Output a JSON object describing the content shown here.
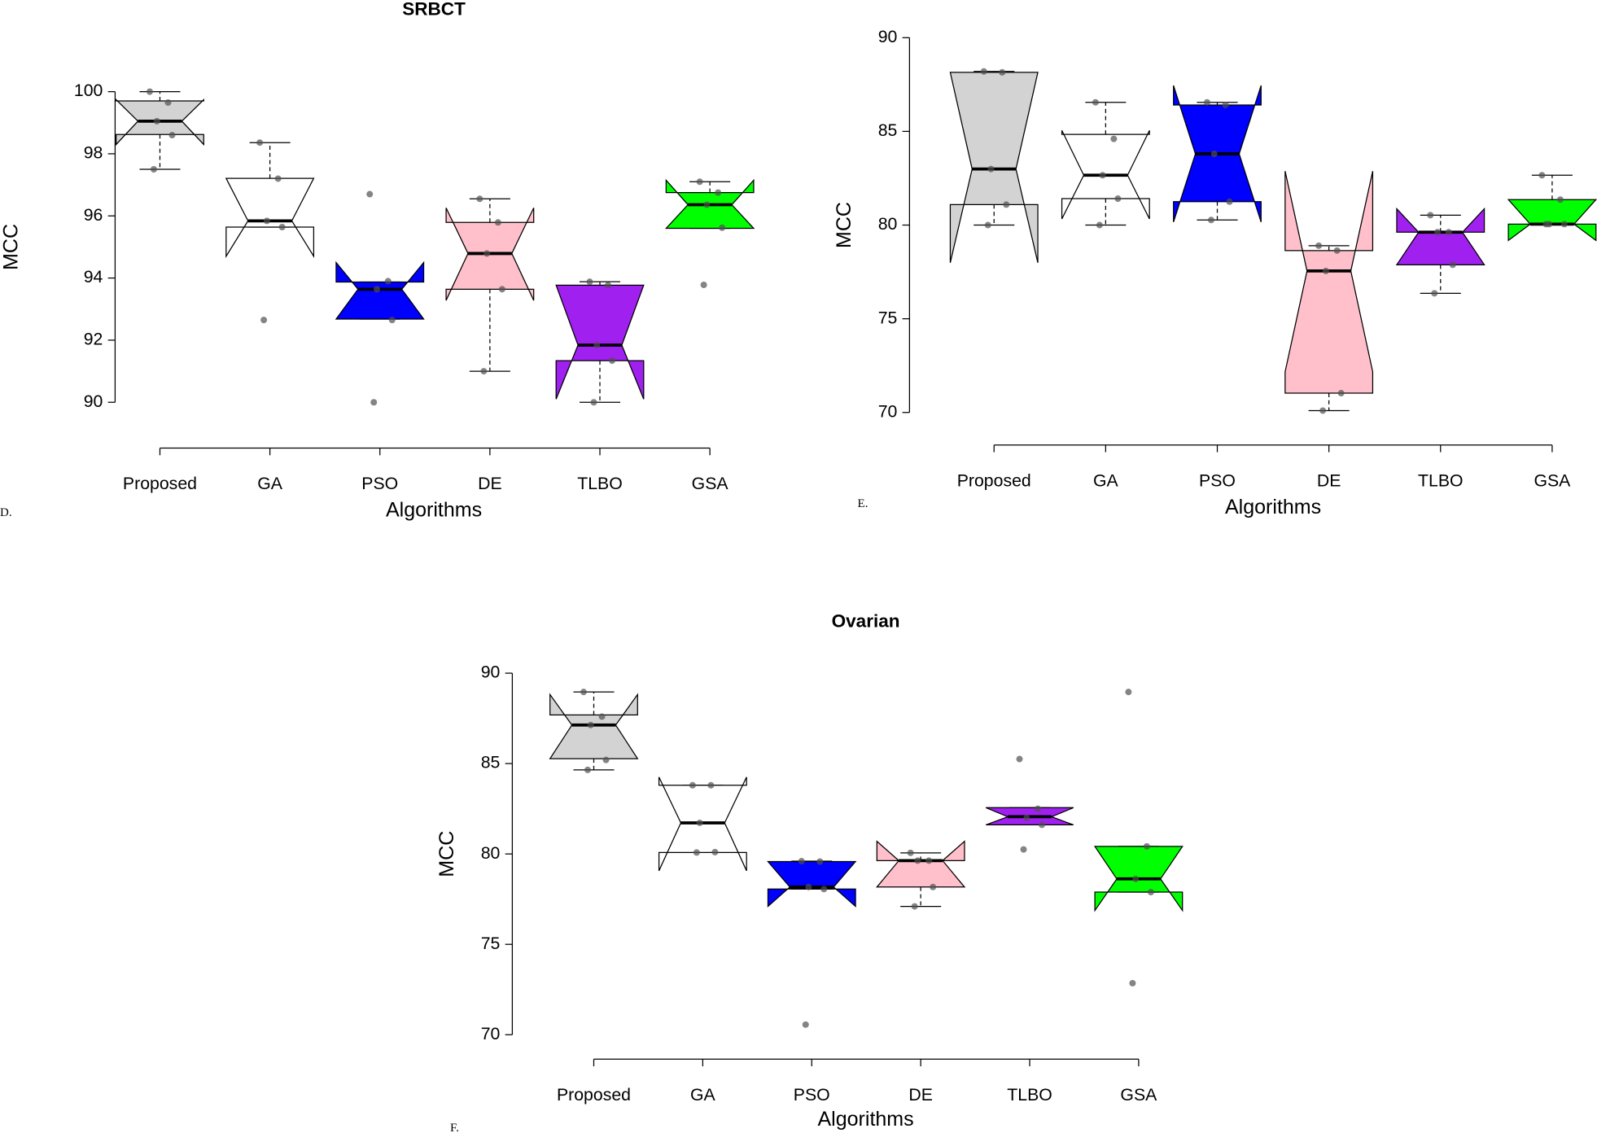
{
  "chart_data": [
    {
      "type": "box",
      "title": "SRBCT",
      "panel_label": "D.",
      "x_label": "Algorithms",
      "y_label": "MCC",
      "categories": [
        "Proposed",
        "GA",
        "PSO",
        "DE",
        "TLBO",
        "GSA"
      ],
      "ylim": [
        90,
        100
      ],
      "yticks": [
        90,
        92,
        94,
        96,
        98,
        100
      ],
      "boxes": [
        {
          "fill": "#d3d3d3",
          "whisker_low": 97.5,
          "q1": 98.62,
          "median": 99.05,
          "q3": 99.7,
          "whisker_high": 100,
          "notch_low": 98.3,
          "notch_high": 99.74,
          "points": [
            100,
            99.65,
            99.05,
            98.6,
            97.5
          ]
        },
        {
          "fill": "#ffffff",
          "whisker_low": 95.64,
          "q1": 95.64,
          "median": 95.84,
          "q3": 97.21,
          "whisker_high": 98.36,
          "notch_low": 94.7,
          "notch_high": 97.21,
          "points": [
            98.36,
            97.2,
            95.84,
            95.64,
            92.65
          ]
        },
        {
          "fill": "#0000ff",
          "whisker_low": 92.68,
          "q1": 92.68,
          "median": 93.64,
          "q3": 93.87,
          "whisker_high": 93.87,
          "notch_low": 92.68,
          "notch_high": 94.5,
          "points": [
            96.7,
            93.9,
            93.64,
            92.65,
            90
          ]
        },
        {
          "fill": "#ffc0cb",
          "whisker_low": 91,
          "q1": 93.64,
          "median": 94.79,
          "q3": 95.79,
          "whisker_high": 96.55,
          "notch_low": 93.28,
          "notch_high": 96.26,
          "points": [
            96.55,
            95.79,
            94.79,
            93.64,
            91
          ]
        },
        {
          "fill": "#a020f0",
          "whisker_low": 90,
          "q1": 91.34,
          "median": 91.84,
          "q3": 93.77,
          "whisker_high": 93.88,
          "notch_low": 90.1,
          "notch_high": 93.77,
          "points": [
            93.88,
            93.77,
            91.84,
            91.34,
            90
          ]
        },
        {
          "fill": "#00ff00",
          "whisker_low": 95.6,
          "q1": 95.6,
          "median": 96.36,
          "q3": 96.75,
          "whisker_high": 97.1,
          "notch_low": 95.6,
          "notch_high": 97.15,
          "points": [
            97.1,
            96.75,
            96.36,
            95.62,
            93.78
          ]
        }
      ]
    },
    {
      "type": "box",
      "panel_label": "E.",
      "x_label": "Algorithms",
      "y_label": "MCC",
      "categories": [
        "Proposed",
        "GA",
        "PSO",
        "DE",
        "TLBO",
        "GSA"
      ],
      "ylim": [
        70,
        90
      ],
      "yticks": [
        70,
        75,
        80,
        85,
        90
      ],
      "boxes": [
        {
          "fill": "#d3d3d3",
          "whisker_low": 80,
          "q1": 81.09,
          "median": 82.99,
          "q3": 88.15,
          "whisker_high": 88.2,
          "notch_low": 77.99,
          "notch_high": 88.15,
          "points": [
            88.2,
            88.15,
            82.99,
            81.09,
            80
          ]
        },
        {
          "fill": "#ffffff",
          "whisker_low": 80,
          "q1": 81.41,
          "median": 82.66,
          "q3": 84.84,
          "whisker_high": 86.55,
          "notch_low": 80.33,
          "notch_high": 85.05,
          "points": [
            86.55,
            84.6,
            82.66,
            81.41,
            80
          ]
        },
        {
          "fill": "#0000ff",
          "whisker_low": 80.27,
          "q1": 81.25,
          "median": 83.8,
          "q3": 86.41,
          "whisker_high": 86.55,
          "notch_low": 80.16,
          "notch_high": 87.45,
          "points": [
            86.55,
            86.41,
            83.8,
            81.25,
            80.27
          ]
        },
        {
          "fill": "#ffc0cb",
          "whisker_low": 70.1,
          "q1": 71.03,
          "median": 77.55,
          "q3": 78.64,
          "whisker_high": 78.9,
          "notch_low": 72.17,
          "notch_high": 82.88,
          "points": [
            78.9,
            78.64,
            77.55,
            71.03,
            70.1
          ]
        },
        {
          "fill": "#a020f0",
          "whisker_low": 76.36,
          "q1": 77.88,
          "median": 79.62,
          "q3": 79.62,
          "whisker_high": 80.53,
          "notch_low": 77.88,
          "notch_high": 80.87,
          "points": [
            80.53,
            79.62,
            79.62,
            77.88,
            76.36
          ]
        },
        {
          "fill": "#00ff00",
          "whisker_low": 80.05,
          "q1": 80.05,
          "median": 80.05,
          "q3": 81.36,
          "whisker_high": 82.66,
          "notch_low": 79.18,
          "notch_high": 81.36,
          "points": [
            82.66,
            81.36,
            80.05,
            80.05,
            80.05
          ]
        }
      ]
    },
    {
      "type": "box",
      "title": "Ovarian",
      "panel_label": "F.",
      "x_label": "Algorithms",
      "y_label": "MCC",
      "categories": [
        "Proposed",
        "GA",
        "PSO",
        "DE",
        "TLBO",
        "GSA"
      ],
      "ylim": [
        70,
        90
      ],
      "yticks": [
        70,
        75,
        80,
        85,
        90
      ],
      "boxes": [
        {
          "fill": "#d3d3d3",
          "whisker_low": 84.65,
          "q1": 85.27,
          "median": 87.13,
          "q3": 87.69,
          "whisker_high": 88.96,
          "notch_low": 85.27,
          "notch_high": 88.82,
          "points": [
            88.96,
            87.6,
            87.13,
            85.2,
            84.65
          ]
        },
        {
          "fill": "#ffffff",
          "whisker_low": 80.08,
          "q1": 80.08,
          "median": 81.72,
          "q3": 83.8,
          "whisker_high": 83.8,
          "notch_low": 79.07,
          "notch_high": 84.25,
          "points": [
            83.8,
            83.8,
            81.72,
            80.1,
            80.08
          ]
        },
        {
          "fill": "#0000ff",
          "whisker_low": 78.06,
          "q1": 78.06,
          "median": 78.17,
          "q3": 79.58,
          "whisker_high": 79.6,
          "notch_low": 77.1,
          "notch_high": 79.58,
          "points": [
            79.6,
            79.58,
            78.17,
            78.06,
            70.56
          ]
        },
        {
          "fill": "#ffc0cb",
          "whisker_low": 77.1,
          "q1": 78.17,
          "median": 79.63,
          "q3": 79.63,
          "whisker_high": 80.06,
          "notch_low": 78.17,
          "notch_high": 80.7,
          "points": [
            80.06,
            79.63,
            79.63,
            78.17,
            77.1
          ]
        },
        {
          "fill": "#a020f0",
          "whisker_low": 81.61,
          "q1": 81.61,
          "median": 82.06,
          "q3": 82.56,
          "whisker_high": 82.56,
          "notch_low": 81.61,
          "notch_high": 82.56,
          "points": [
            85.25,
            82.5,
            82.0,
            81.61,
            80.25
          ]
        },
        {
          "fill": "#00ff00",
          "whisker_low": 77.89,
          "q1": 77.89,
          "median": 78.62,
          "q3": 80.42,
          "whisker_high": 80.42,
          "notch_low": 76.87,
          "notch_high": 80.42,
          "points": [
            88.96,
            80.42,
            78.62,
            77.89,
            72.85
          ]
        }
      ]
    }
  ]
}
